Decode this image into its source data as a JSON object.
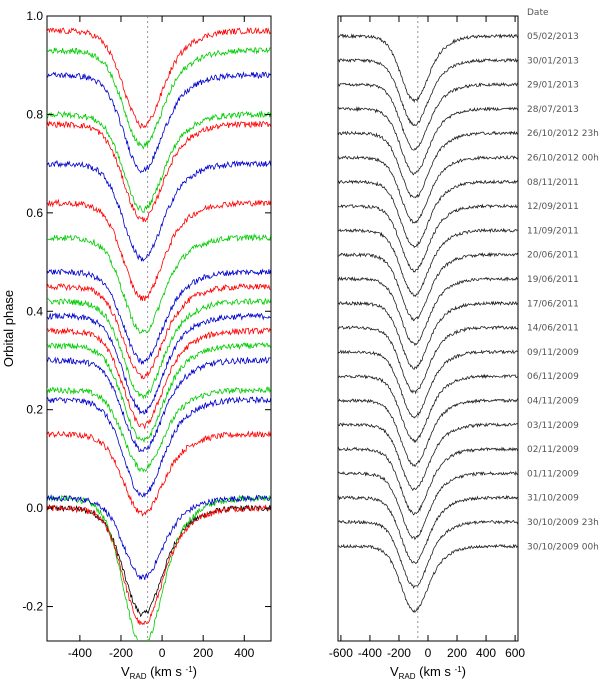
{
  "chart_data": [
    {
      "type": "line",
      "panel": "left",
      "xlabel_main": "V",
      "xlabel_sub": "RAD",
      "xlabel_units": " (km s ",
      "xlabel_sup": "-1",
      "xlabel_close": ")",
      "ylabel": "Orbital phase",
      "xlim": [
        -560,
        530
      ],
      "ylim": [
        -0.27,
        1.0
      ],
      "x_ticks": [
        -400,
        -200,
        0,
        200,
        400
      ],
      "x_tick_labels": [
        "-400",
        "-200",
        "0",
        "200",
        "400"
      ],
      "y_ticks": [
        -0.2,
        0.0,
        0.2,
        0.4,
        0.6,
        0.8,
        1.0
      ],
      "y_tick_labels": [
        "-0.2",
        "0.0",
        "0.2",
        "0.4",
        "0.6",
        "0.8",
        "1.0"
      ],
      "reference_line_x": -70,
      "series": [
        {
          "color": "#000000",
          "offset": 0.0,
          "depth": 0.2
        },
        {
          "color": "#00cc00",
          "offset": 0.02,
          "depth": 0.28
        },
        {
          "color": "#ff0000",
          "offset": 0.0,
          "depth": 0.22
        },
        {
          "color": "#0000cc",
          "offset": 0.02,
          "depth": 0.15
        },
        {
          "color": "#ff0000",
          "offset": 0.15,
          "depth": 0.15
        },
        {
          "color": "#0000cc",
          "offset": 0.22,
          "depth": 0.18
        },
        {
          "color": "#00cc00",
          "offset": 0.24,
          "depth": 0.15
        },
        {
          "color": "#0000cc",
          "offset": 0.3,
          "depth": 0.17
        },
        {
          "color": "#00cc00",
          "offset": 0.33,
          "depth": 0.18
        },
        {
          "color": "#ff0000",
          "offset": 0.36,
          "depth": 0.18
        },
        {
          "color": "#0000cc",
          "offset": 0.39,
          "depth": 0.18
        },
        {
          "color": "#00cc00",
          "offset": 0.42,
          "depth": 0.18
        },
        {
          "color": "#ff0000",
          "offset": 0.45,
          "depth": 0.17
        },
        {
          "color": "#0000cc",
          "offset": 0.48,
          "depth": 0.17
        },
        {
          "color": "#00cc00",
          "offset": 0.55,
          "depth": 0.18
        },
        {
          "color": "#ff0000",
          "offset": 0.62,
          "depth": 0.18
        },
        {
          "color": "#0000cc",
          "offset": 0.7,
          "depth": 0.18
        },
        {
          "color": "#ff0000",
          "offset": 0.78,
          "depth": 0.18
        },
        {
          "color": "#00cc00",
          "offset": 0.8,
          "depth": 0.18
        },
        {
          "color": "#0000cc",
          "offset": 0.88,
          "depth": 0.18
        },
        {
          "color": "#00cc00",
          "offset": 0.93,
          "depth": 0.18
        },
        {
          "color": "#ff0000",
          "offset": 0.97,
          "depth": 0.18
        }
      ]
    },
    {
      "type": "line",
      "panel": "right",
      "xlabel_main": "V",
      "xlabel_sub": "RAD",
      "xlabel_units": " (km s ",
      "xlabel_sup": "-1",
      "xlabel_close": ")",
      "legend_title": "Date",
      "xlim": [
        -620,
        620
      ],
      "x_ticks": [
        -600,
        -400,
        -200,
        0,
        200,
        400,
        600
      ],
      "x_tick_labels": [
        "-600",
        "-400",
        "-200",
        "0",
        "200",
        "400",
        "600"
      ],
      "reference_line_x": -70,
      "dates": [
        "05/02/2013",
        "30/01/2013",
        "29/01/2013",
        "28/07/2013",
        "26/10/2012 23h",
        "26/10/2012 00h",
        "08/11/2011",
        "12/09/2011",
        "11/09/2011",
        "20/06/2011",
        "19/06/2011",
        "17/06/2011",
        "14/06/2011",
        "09/11/2009",
        "06/11/2009",
        "04/11/2009",
        "03/11/2009",
        "02/11/2009",
        "01/11/2009",
        "31/10/2009",
        "30/10/2009 23h",
        "30/10/2009 00h"
      ],
      "line_color": "#222222"
    }
  ]
}
